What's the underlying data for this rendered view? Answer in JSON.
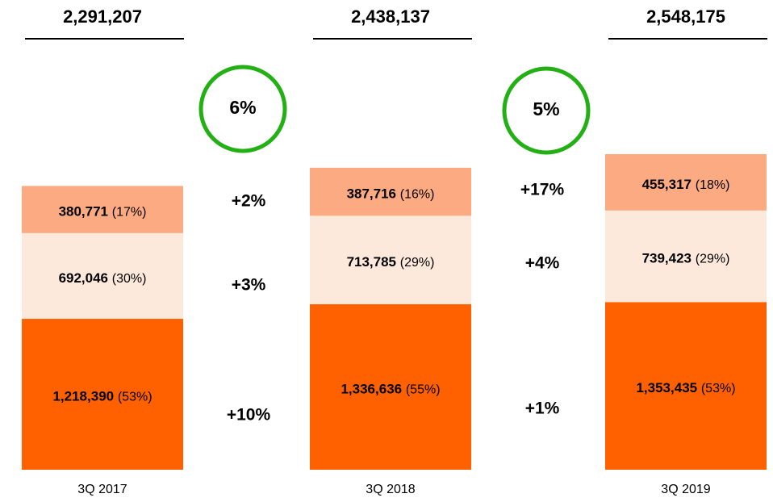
{
  "chart_data": {
    "type": "stacked-bar",
    "categories": [
      "3Q 2017",
      "3Q 2018",
      "3Q 2019"
    ],
    "series": [
      {
        "color": "#ff6000",
        "values": [
          1218390,
          1336636,
          1353435
        ],
        "value_labels": [
          "1,218,390",
          "1,336,636",
          "1,353,435"
        ],
        "share_labels": [
          "(53%)",
          "(55%)",
          "(53%)"
        ]
      },
      {
        "color": "#fde9dc",
        "values": [
          692046,
          713785,
          739423
        ],
        "value_labels": [
          "692,046",
          "713,785",
          "739,423"
        ],
        "share_labels": [
          "(30%)",
          "(29%)",
          "(29%)"
        ]
      },
      {
        "color": "#fcaa82",
        "values": [
          380771,
          387716,
          455317
        ],
        "value_labels": [
          "380,771",
          "387,716",
          "455,317"
        ],
        "share_labels": [
          "(17%)",
          "(16%)",
          "(18%)"
        ]
      }
    ],
    "total_labels": [
      "2,291,207",
      "2,438,137",
      "2,548,175"
    ],
    "growth_labels": [
      [
        "+10%",
        "+3%",
        "+2%"
      ],
      [
        "+1%",
        "+4%",
        "+17%"
      ]
    ],
    "total_growth_labels": [
      "6%",
      "5%"
    ],
    "circle_color": "#22b014",
    "ylim": [
      0,
      2600000
    ]
  }
}
